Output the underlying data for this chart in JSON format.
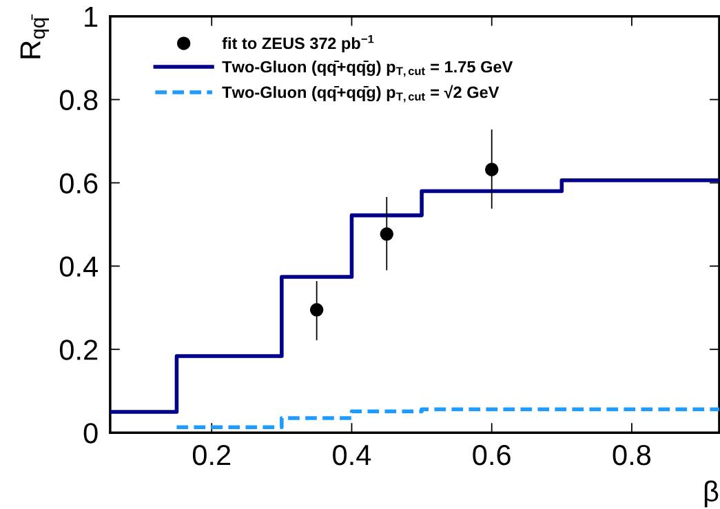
{
  "chart_data": {
    "type": "step",
    "xlabel": "β",
    "ylabel": "R$_{qq̄}$",
    "xlim": [
      0.055,
      0.925
    ],
    "ylim": [
      0,
      1
    ],
    "xticks": [
      0.2,
      0.4,
      0.6,
      0.8
    ],
    "yticks": [
      0,
      0.2,
      0.4,
      0.6,
      0.8,
      1
    ],
    "series": [
      {
        "name": "fit to ZEUS 372 pb$^{−1}$",
        "type": "scatter",
        "color": "#000000",
        "marker": "circle",
        "x": [
          0.35,
          0.45,
          0.6
        ],
        "values": [
          0.295,
          0.477,
          0.632
        ],
        "errors": [
          [
            0.222,
            0.364
          ],
          [
            0.39,
            0.566
          ],
          [
            0.538,
            0.728
          ]
        ]
      },
      {
        "name": "Two-Gluon (qq̄+qq̄g) p$_{T,cut}$ = 1.75 GeV",
        "color": "#00008b",
        "line_style": "solid",
        "x": [
          0.055,
          0.15,
          0.3,
          0.4,
          0.5,
          0.7,
          0.925
        ],
        "values": [
          0.05,
          0.184,
          0.374,
          0.522,
          0.58,
          0.606,
          0.606
        ]
      },
      {
        "name": "Two-Gluon (qq̄+qq̄g) p$_{T,cut}$ = √2 GeV",
        "color": "#1e9bff",
        "line_style": "dashed",
        "x": [
          0.15,
          0.3,
          0.4,
          0.5,
          0.925
        ],
        "values": [
          0.013,
          0.035,
          0.051,
          0.056,
          0.056
        ]
      }
    ],
    "legend": "top left",
    "grid": false
  }
}
